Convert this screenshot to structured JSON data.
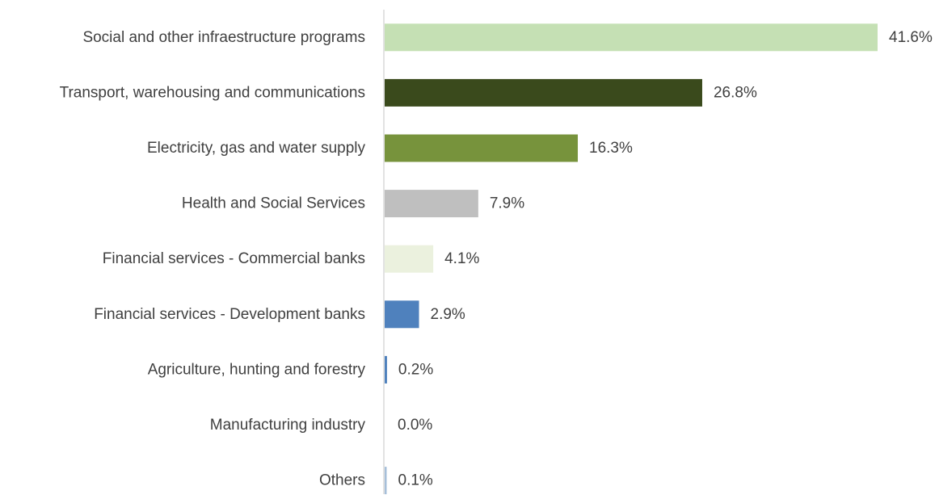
{
  "chart_data": {
    "type": "bar",
    "orientation": "horizontal",
    "categories": [
      "Social and other infraestructure programs",
      "Transport, warehousing and communications",
      "Electricity, gas and water supply",
      "Health and Social Services",
      "Financial services - Commercial banks",
      "Financial services - Development  banks",
      "Agriculture, hunting and forestry",
      "Manufacturing industry",
      "Others"
    ],
    "values": [
      41.6,
      26.8,
      16.3,
      7.9,
      4.1,
      2.9,
      0.2,
      0.0,
      0.1
    ],
    "value_labels": [
      "41.6%",
      "26.8%",
      "16.3%",
      "7.9%",
      "4.1%",
      "2.9%",
      "0.2%",
      "0.0%",
      "0.1%"
    ],
    "colors": [
      "#c5e0b4",
      "#3a4a1c",
      "#77933c",
      "#bfbfbf",
      "#ebf1de",
      "#4f81bd",
      "#4f81bd",
      "#4f81bd",
      "#a6bfd9"
    ],
    "xlim": [
      0,
      45
    ],
    "title": "",
    "xlabel": "",
    "ylabel": "",
    "grid": false,
    "legend": "none"
  }
}
